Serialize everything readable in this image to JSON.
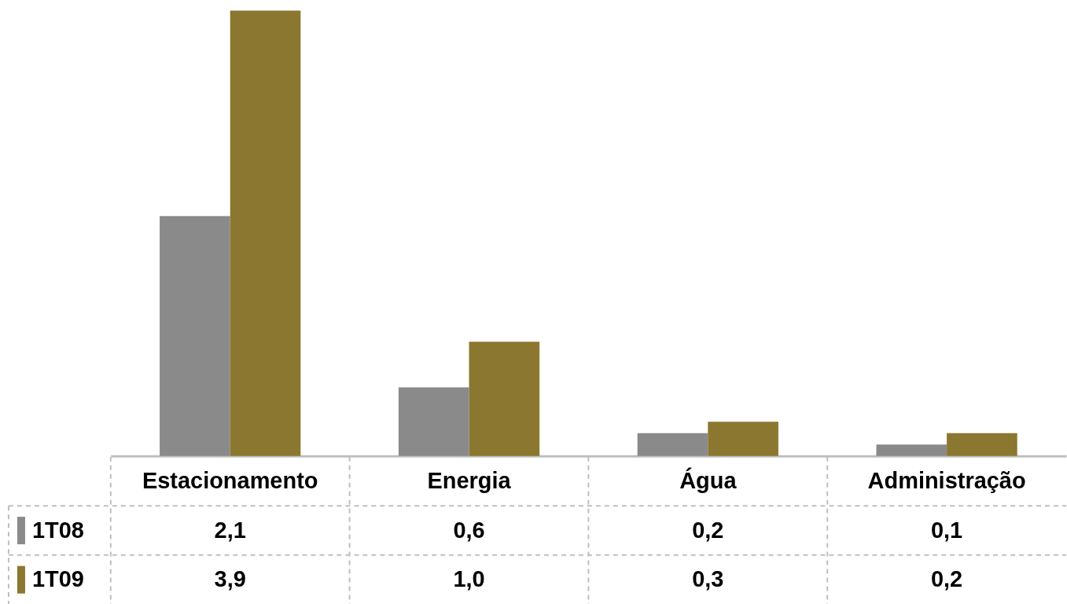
{
  "chart_data": {
    "type": "bar",
    "categories": [
      "Estacionamento",
      "Energia",
      "Água",
      "Administração"
    ],
    "series": [
      {
        "name": "1T08",
        "color": "#8a8a8a",
        "values": [
          2.1,
          0.6,
          0.2,
          0.1
        ],
        "value_labels": [
          "2,1",
          "0,6",
          "0,2",
          "0,1"
        ]
      },
      {
        "name": "1T09",
        "color": "#8b7730",
        "values": [
          3.9,
          1.0,
          0.3,
          0.2
        ],
        "value_labels": [
          "3,9",
          "1,0",
          "0,3",
          "0,2"
        ]
      }
    ],
    "legend": "bottom left"
  }
}
